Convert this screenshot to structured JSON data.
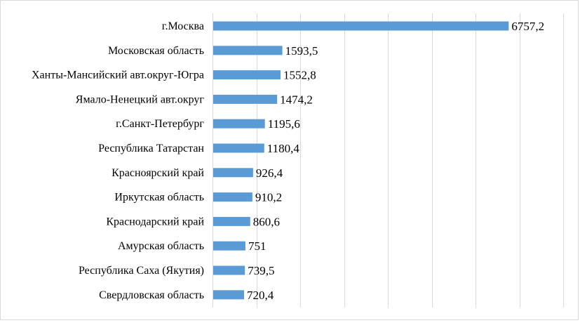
{
  "chart_data": {
    "type": "bar",
    "orientation": "horizontal",
    "categories": [
      "г.Москва",
      "Московская область",
      "Ханты-Мансийский авт.округ-Югра",
      "Ямало-Ненецкий авт.округ",
      "г.Санкт-Петербург",
      "Республика Татарстан",
      "Красноярский край",
      "Иркутская область",
      "Краснодарский край",
      "Амурская область",
      "Республика Саха (Якутия)",
      "Свердловская область"
    ],
    "values": [
      6757.2,
      1593.5,
      1552.8,
      1474.2,
      1195.6,
      1180.4,
      926.4,
      910.2,
      860.6,
      751,
      739.5,
      720.4
    ],
    "value_labels": [
      "6757,2",
      "1593,5",
      "1552,8",
      "1474,2",
      "1195,6",
      "1180,4",
      "926,4",
      "910,2",
      "860,6",
      "751",
      "739,5",
      "720,4"
    ],
    "xlim": [
      0,
      8000
    ],
    "grid": "vertical",
    "legend": "none",
    "bar_color": "#5b9bd5",
    "title": "",
    "xlabel": "",
    "ylabel": ""
  }
}
